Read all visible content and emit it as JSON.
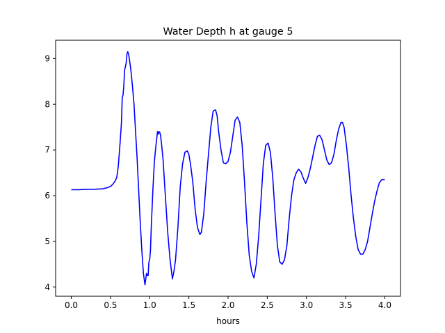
{
  "chart_data": {
    "type": "line",
    "title": "Water Depth h at gauge 5",
    "xlabel": "hours",
    "ylabel": "",
    "xlim": [
      -0.2,
      4.2
    ],
    "ylim": [
      3.8,
      9.4
    ],
    "xticks": [
      0.0,
      0.5,
      1.0,
      1.5,
      2.0,
      2.5,
      3.0,
      3.5,
      4.0
    ],
    "xtick_labels": [
      "0.0",
      "0.5",
      "1.0",
      "1.5",
      "2.0",
      "2.5",
      "3.0",
      "3.5",
      "4.0"
    ],
    "yticks": [
      4,
      5,
      6,
      7,
      8,
      9
    ],
    "ytick_labels": [
      "4",
      "5",
      "6",
      "7",
      "8",
      "9"
    ],
    "grid": false,
    "series": [
      {
        "color": "#0000ff",
        "x": [
          0.0,
          0.1,
          0.2,
          0.3,
          0.4,
          0.45,
          0.5,
          0.53,
          0.56,
          0.58,
          0.6,
          0.62,
          0.64,
          0.65,
          0.66,
          0.67,
          0.68,
          0.69,
          0.7,
          0.71,
          0.72,
          0.73,
          0.74,
          0.76,
          0.78,
          0.8,
          0.82,
          0.84,
          0.86,
          0.88,
          0.9,
          0.92,
          0.94,
          0.96,
          0.97,
          0.98,
          0.99,
          1.0,
          1.01,
          1.02,
          1.04,
          1.06,
          1.08,
          1.1,
          1.11,
          1.12,
          1.13,
          1.14,
          1.15,
          1.17,
          1.2,
          1.23,
          1.26,
          1.29,
          1.31,
          1.33,
          1.36,
          1.39,
          1.42,
          1.45,
          1.48,
          1.5,
          1.52,
          1.55,
          1.58,
          1.61,
          1.64,
          1.66,
          1.69,
          1.72,
          1.75,
          1.78,
          1.81,
          1.84,
          1.86,
          1.88,
          1.91,
          1.94,
          1.97,
          2.0,
          2.03,
          2.06,
          2.09,
          2.12,
          2.15,
          2.18,
          2.21,
          2.24,
          2.27,
          2.3,
          2.33,
          2.36,
          2.39,
          2.42,
          2.45,
          2.48,
          2.51,
          2.54,
          2.57,
          2.6,
          2.63,
          2.66,
          2.69,
          2.72,
          2.75,
          2.78,
          2.81,
          2.84,
          2.87,
          2.9,
          2.93,
          2.96,
          2.99,
          3.02,
          3.05,
          3.08,
          3.11,
          3.14,
          3.17,
          3.2,
          3.23,
          3.26,
          3.29,
          3.32,
          3.35,
          3.38,
          3.41,
          3.44,
          3.46,
          3.48,
          3.51,
          3.54,
          3.57,
          3.6,
          3.63,
          3.66,
          3.69,
          3.72,
          3.75,
          3.78,
          3.81,
          3.84,
          3.87,
          3.9,
          3.93,
          3.96,
          4.0
        ],
        "y": [
          6.13,
          6.13,
          6.14,
          6.14,
          6.15,
          6.17,
          6.2,
          6.25,
          6.32,
          6.4,
          6.65,
          7.1,
          7.6,
          8.15,
          8.2,
          8.4,
          8.75,
          8.82,
          8.9,
          9.1,
          9.15,
          9.1,
          9.0,
          8.75,
          8.4,
          8.0,
          7.4,
          6.8,
          6.1,
          5.4,
          4.8,
          4.3,
          4.05,
          4.3,
          4.25,
          4.25,
          4.55,
          4.6,
          4.8,
          5.3,
          6.1,
          6.75,
          7.1,
          7.4,
          7.35,
          7.4,
          7.38,
          7.3,
          7.15,
          6.8,
          6.0,
          5.2,
          4.6,
          4.18,
          4.35,
          4.6,
          5.3,
          6.2,
          6.7,
          6.95,
          6.98,
          6.9,
          6.7,
          6.3,
          5.7,
          5.3,
          5.15,
          5.2,
          5.6,
          6.3,
          6.9,
          7.5,
          7.85,
          7.88,
          7.75,
          7.4,
          7.0,
          6.72,
          6.7,
          6.75,
          6.95,
          7.3,
          7.65,
          7.72,
          7.6,
          7.1,
          6.3,
          5.4,
          4.7,
          4.35,
          4.2,
          4.5,
          5.1,
          5.9,
          6.7,
          7.1,
          7.15,
          6.95,
          6.4,
          5.6,
          4.9,
          4.55,
          4.5,
          4.6,
          4.9,
          5.5,
          6.0,
          6.35,
          6.5,
          6.58,
          6.52,
          6.38,
          6.27,
          6.4,
          6.6,
          6.85,
          7.1,
          7.3,
          7.32,
          7.22,
          7.0,
          6.78,
          6.68,
          6.72,
          6.9,
          7.2,
          7.45,
          7.6,
          7.6,
          7.5,
          7.1,
          6.6,
          6.0,
          5.5,
          5.1,
          4.82,
          4.72,
          4.72,
          4.82,
          5.0,
          5.3,
          5.6,
          5.88,
          6.1,
          6.28,
          6.35,
          6.35
        ]
      }
    ]
  }
}
